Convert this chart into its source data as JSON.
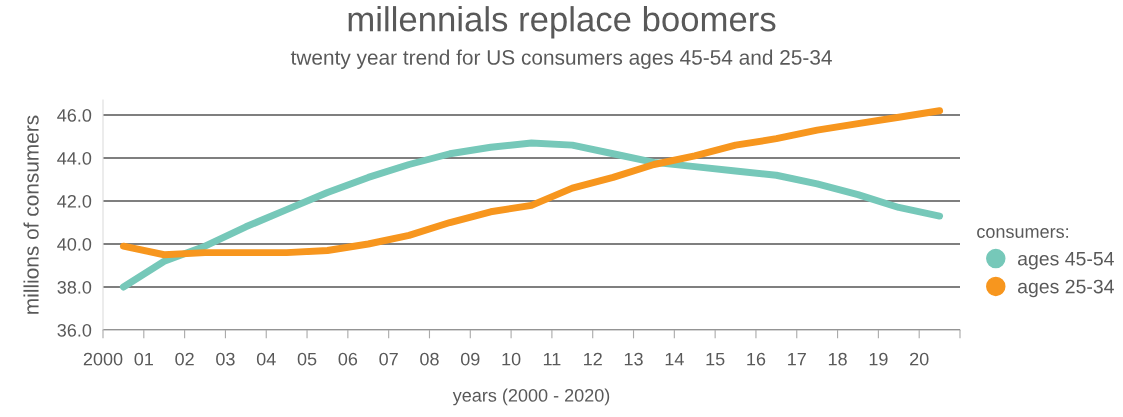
{
  "chart_data": {
    "type": "line",
    "title": "millennials replace boomers",
    "subtitle": "twenty year trend for US consumers ages 45-54 and 25-34",
    "xlabel": "years (2000 - 2020)",
    "ylabel": "millions of consumers",
    "legend_title": "consumers:",
    "x": [
      2000.5,
      2001.5,
      2002.5,
      2003.5,
      2004.5,
      2005.5,
      2006.5,
      2007.5,
      2008.5,
      2009.5,
      2010.5,
      2011.5,
      2012.5,
      2013.5,
      2014.5,
      2015.5,
      2016.5,
      2017.5,
      2018.5,
      2019.5,
      2020.5
    ],
    "series": [
      {
        "name": "ages 45-54",
        "color": "#76c8b9",
        "values": [
          38.0,
          39.2,
          39.9,
          40.8,
          41.6,
          42.4,
          43.1,
          43.7,
          44.2,
          44.5,
          44.7,
          44.6,
          44.2,
          43.8,
          43.6,
          43.4,
          43.2,
          42.8,
          42.3,
          41.7,
          41.3
        ]
      },
      {
        "name": "ages 25-34",
        "color": "#f7961e",
        "values": [
          39.9,
          39.5,
          39.6,
          39.6,
          39.6,
          39.7,
          40.0,
          40.4,
          41.0,
          41.5,
          41.8,
          42.6,
          43.1,
          43.7,
          44.1,
          44.6,
          44.9,
          45.3,
          45.6,
          45.9,
          46.2
        ]
      }
    ],
    "xlim": [
      2000,
      2021
    ],
    "xticks": [
      {
        "value": 2000,
        "label": "2000"
      },
      {
        "value": 2001,
        "label": "01"
      },
      {
        "value": 2002,
        "label": "02"
      },
      {
        "value": 2003,
        "label": "03"
      },
      {
        "value": 2004,
        "label": "04"
      },
      {
        "value": 2005,
        "label": "05"
      },
      {
        "value": 2006,
        "label": "06"
      },
      {
        "value": 2007,
        "label": "07"
      },
      {
        "value": 2008,
        "label": "08"
      },
      {
        "value": 2009,
        "label": "09"
      },
      {
        "value": 2010,
        "label": "10"
      },
      {
        "value": 2011,
        "label": "11"
      },
      {
        "value": 2012,
        "label": "12"
      },
      {
        "value": 2013,
        "label": "13"
      },
      {
        "value": 2014,
        "label": "14"
      },
      {
        "value": 2015,
        "label": "15"
      },
      {
        "value": 2016,
        "label": "16"
      },
      {
        "value": 2017,
        "label": "17"
      },
      {
        "value": 2018,
        "label": "18"
      },
      {
        "value": 2019,
        "label": "19"
      },
      {
        "value": 2020,
        "label": "20"
      },
      {
        "value": 2021,
        "label": null
      }
    ],
    "ylim": [
      36,
      46.7
    ],
    "yticks": [
      {
        "value": 36,
        "label": "36.0"
      },
      {
        "value": 38,
        "label": "38.0"
      },
      {
        "value": 40,
        "label": "40.0"
      },
      {
        "value": 42,
        "label": "42.0"
      },
      {
        "value": 44,
        "label": "44.0"
      },
      {
        "value": 46,
        "label": "46.0"
      }
    ],
    "grid": "y",
    "legend": "right",
    "marker": "none",
    "line_style": "solid"
  }
}
